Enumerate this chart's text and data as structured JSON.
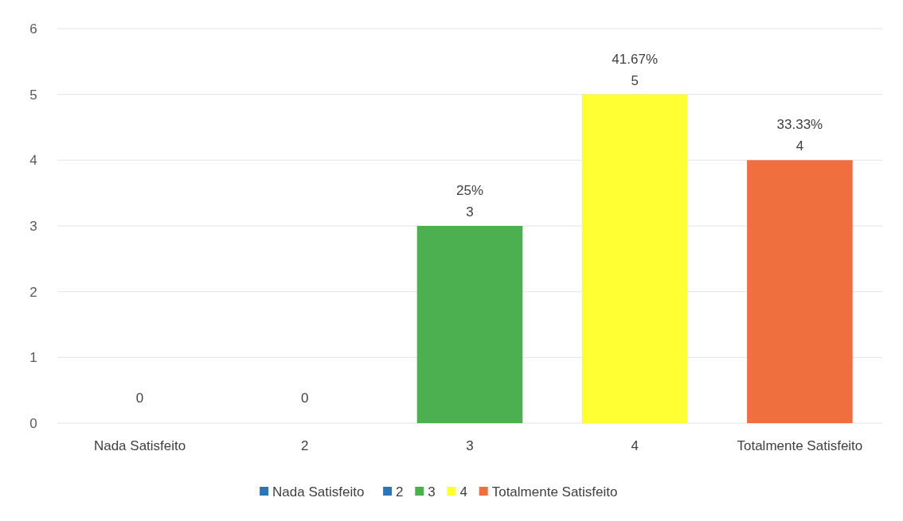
{
  "chart_data": {
    "type": "bar",
    "categories": [
      "Nada Satisfeito",
      "2",
      "3",
      "4",
      "Totalmente Satisfeito"
    ],
    "series": [
      {
        "name": "Nada Satisfeito",
        "color": "#2e75b6",
        "values": [
          0,
          null,
          null,
          null,
          null
        ],
        "value_labels": [
          "0",
          null,
          null,
          null,
          null
        ]
      },
      {
        "name": "2",
        "color": "#2e75b6",
        "values": [
          null,
          0,
          null,
          null,
          null
        ],
        "value_labels": [
          null,
          "0",
          null,
          null,
          null
        ]
      },
      {
        "name": "3",
        "color": "#4cb050",
        "values": [
          null,
          null,
          3,
          null,
          null
        ],
        "value_labels": [
          null,
          null,
          "25%\n3",
          null,
          null
        ]
      },
      {
        "name": "4",
        "color": "#ffff33",
        "values": [
          null,
          null,
          null,
          5,
          null
        ],
        "value_labels": [
          null,
          null,
          null,
          "41.67%\n5",
          null
        ]
      },
      {
        "name": "Totalmente Satisfeito",
        "color": "#ef6f3f",
        "values": [
          null,
          null,
          null,
          null,
          4
        ],
        "value_labels": [
          null,
          null,
          null,
          null,
          "33.33%\n4"
        ]
      }
    ],
    "ylim": [
      0,
      6
    ],
    "yticks": [
      0,
      1,
      2,
      3,
      4,
      5,
      6
    ],
    "grid": "y",
    "legend": "bottom"
  }
}
